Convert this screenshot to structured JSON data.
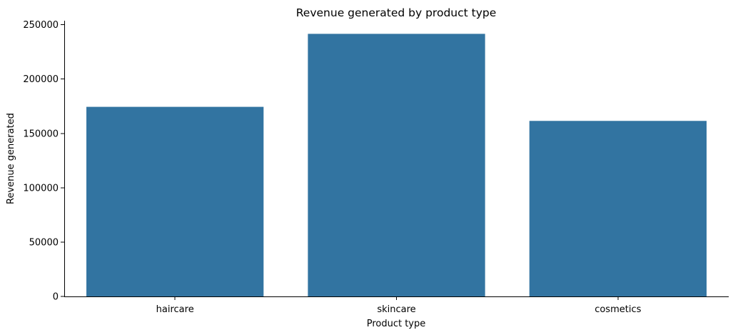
{
  "chart_data": {
    "type": "bar",
    "title": "Revenue generated by product type",
    "xlabel": "Product type",
    "ylabel": "Revenue generated",
    "categories": [
      "haircare",
      "skincare",
      "cosmetics"
    ],
    "values": [
      174455,
      241628,
      161521
    ],
    "ylim": [
      0,
      253709
    ],
    "yticks": [
      0,
      50000,
      100000,
      150000,
      200000,
      250000
    ],
    "bar_color": "#3274a1",
    "grid": false,
    "legend": false
  }
}
